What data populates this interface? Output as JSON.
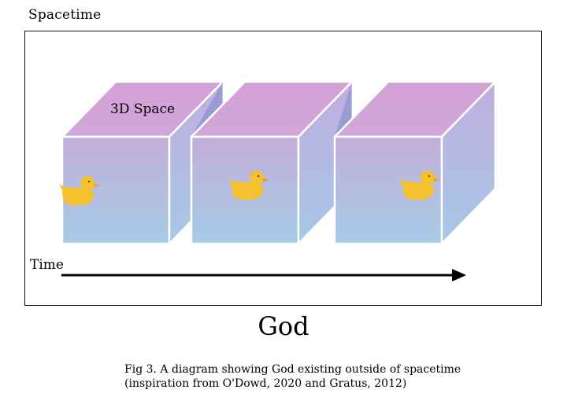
{
  "title": "Spacetime",
  "space_label": "3D Space",
  "time_label": "Time",
  "god_label": "God",
  "caption": {
    "line1": "Fig 3. A diagram showing God existing outside of spacetime",
    "line2": "(inspiration from O'Dowd, 2020 and Gratus, 2012)"
  },
  "cubes": [
    {
      "duck": "rubber-duck-icon"
    },
    {
      "duck": "rubber-duck-icon"
    },
    {
      "duck": "rubber-duck-icon"
    }
  ],
  "colors": {
    "top_face": "#d3a2d7",
    "front_top": "#c2aedb",
    "front_bottom": "#a6cbe6",
    "side_face": "#a9b4e0",
    "overlap": "#7f86c9",
    "duck": "#f6c12e",
    "duck_beak": "#f0a21c",
    "edge": "#ffffff",
    "arrow": "#000000"
  }
}
